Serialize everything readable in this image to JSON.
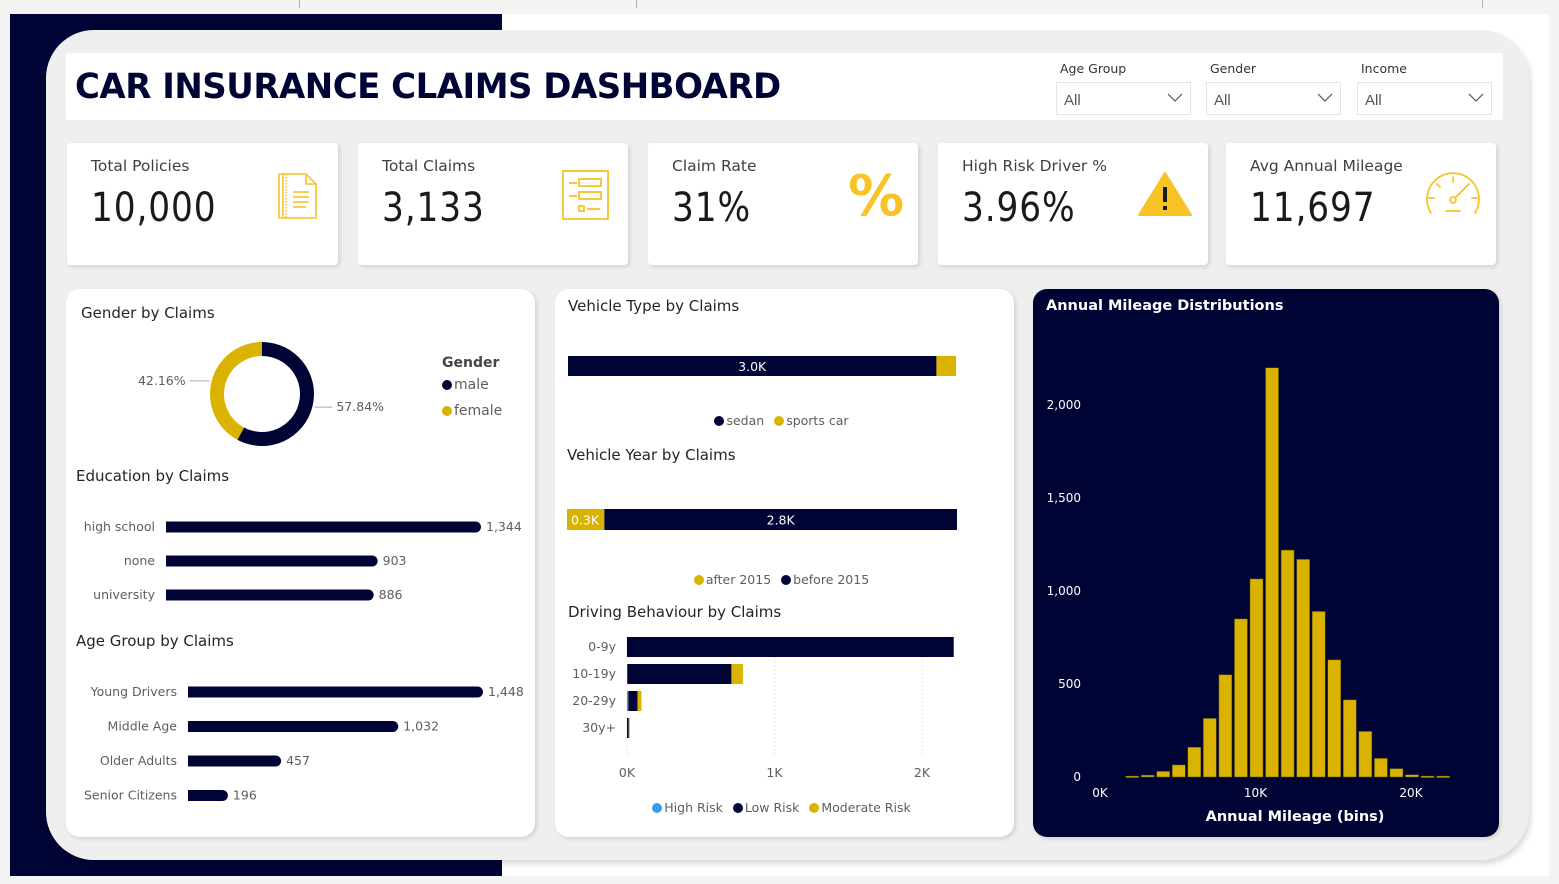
{
  "colors": {
    "navy": "#000435",
    "gold": "#D9B300",
    "kpi_icon": "#F7C325",
    "high_risk_blue": "#3A9BE8"
  },
  "header": {
    "title": "CAR INSURANCE CLAIMS DASHBOARD"
  },
  "slicers": [
    {
      "label": "Age Group",
      "value": "All",
      "icon": "chevron-down-icon"
    },
    {
      "label": "Gender",
      "value": "All",
      "icon": "chevron-down-icon"
    },
    {
      "label": "Income",
      "value": "All",
      "icon": "chevron-down-icon"
    }
  ],
  "kpis": [
    {
      "label": "Total Policies",
      "value": "10,000",
      "icon": "document-icon"
    },
    {
      "label": "Total Claims",
      "value": "3,133",
      "icon": "list-form-icon"
    },
    {
      "label": "Claim Rate",
      "value": "31%",
      "icon": "percent-icon"
    },
    {
      "label": "High Risk Driver %",
      "value": "3.96%",
      "icon": "warning-icon"
    },
    {
      "label": "Avg Annual Mileage",
      "value": "11,697",
      "icon": "speedometer-icon"
    }
  ],
  "panels": {
    "gender_title": "Gender by Claims",
    "education_title": "Education by Claims",
    "age_title": "Age Group by Claims",
    "vehicle_type_title": "Vehicle Type by Claims",
    "vehicle_year_title": "Vehicle Year by Claims",
    "driving_title": "Driving Behaviour by Claims",
    "mileage_title": "Annual Mileage Distributions"
  },
  "chart_data": [
    {
      "id": "gender",
      "type": "pie",
      "title": "Gender by Claims",
      "legend_title": "Gender",
      "legend_position": "right",
      "slices": [
        {
          "name": "male",
          "value": 57.84,
          "label": "57.84%",
          "color": "#000435"
        },
        {
          "name": "female",
          "value": 42.16,
          "label": "42.16%",
          "color": "#D9B300"
        }
      ]
    },
    {
      "id": "education",
      "type": "bar",
      "orientation": "horizontal",
      "title": "Education by Claims",
      "categories": [
        "high school",
        "none",
        "university"
      ],
      "values": [
        1344,
        903,
        886
      ],
      "labels": [
        "1,344",
        "903",
        "886"
      ]
    },
    {
      "id": "age_group",
      "type": "bar",
      "orientation": "horizontal",
      "title": "Age Group by Claims",
      "categories": [
        "Young Drivers",
        "Middle Age",
        "Older Adults",
        "Senior Citizens"
      ],
      "values": [
        1448,
        1032,
        457,
        196
      ],
      "labels": [
        "1,448",
        "1,032",
        "457",
        "196"
      ]
    },
    {
      "id": "vehicle_type",
      "type": "bar",
      "orientation": "horizontal-stacked",
      "title": "Vehicle Type by Claims",
      "legend_position": "bottom",
      "series": [
        {
          "name": "sedan",
          "values": [
            2975
          ],
          "label": "3.0K",
          "color": "#000435"
        },
        {
          "name": "sports car",
          "values": [
            158
          ],
          "label": "",
          "color": "#D9B300"
        }
      ]
    },
    {
      "id": "vehicle_year",
      "type": "bar",
      "orientation": "horizontal-stacked",
      "title": "Vehicle Year by Claims",
      "legend_position": "bottom",
      "series": [
        {
          "name": "after 2015",
          "values": [
            300
          ],
          "label": "0.3K",
          "color": "#D9B300"
        },
        {
          "name": "before 2015",
          "values": [
            2833
          ],
          "label": "2.8K",
          "color": "#000435"
        }
      ]
    },
    {
      "id": "driving_behaviour",
      "type": "bar",
      "orientation": "horizontal-stacked",
      "title": "Driving Behaviour by Claims",
      "categories": [
        "0-9y",
        "10-19y",
        "20-29y",
        "30y+"
      ],
      "xticks": [
        "0K",
        "1K",
        "2K"
      ],
      "xlim": [
        0,
        2300
      ],
      "grid": true,
      "legend_position": "bottom",
      "series": [
        {
          "name": "High Risk",
          "values": [
            0,
            3,
            9,
            0
          ],
          "color": "#3A9BE8"
        },
        {
          "name": "Low Risk",
          "values": [
            2215,
            705,
            62,
            12
          ],
          "color": "#000435"
        },
        {
          "name": "Moderate Risk",
          "values": [
            0,
            78,
            27,
            3
          ],
          "color": "#D9B300"
        }
      ]
    },
    {
      "id": "mileage",
      "type": "bar",
      "title": "Annual Mileage Distributions",
      "xlabel": "Annual Mileage (bins)",
      "ylabel": "",
      "xticks": [
        "0K",
        "10K",
        "20K"
      ],
      "yticks": [
        "0",
        "500",
        "1,000",
        "1,500",
        "2,000"
      ],
      "ylim": [
        0,
        2400
      ],
      "xlim": [
        0,
        23000
      ],
      "bin_width": 1000,
      "bin_starts": [
        2000,
        3000,
        4000,
        5000,
        6000,
        7000,
        8000,
        9000,
        10000,
        11000,
        12000,
        13000,
        14000,
        15000,
        16000,
        17000,
        18000,
        19000,
        20000,
        21000,
        22000
      ],
      "values": [
        5,
        10,
        30,
        65,
        160,
        315,
        550,
        850,
        1065,
        2200,
        1220,
        1170,
        890,
        630,
        415,
        245,
        100,
        45,
        12,
        5,
        5
      ],
      "grid": false
    }
  ]
}
